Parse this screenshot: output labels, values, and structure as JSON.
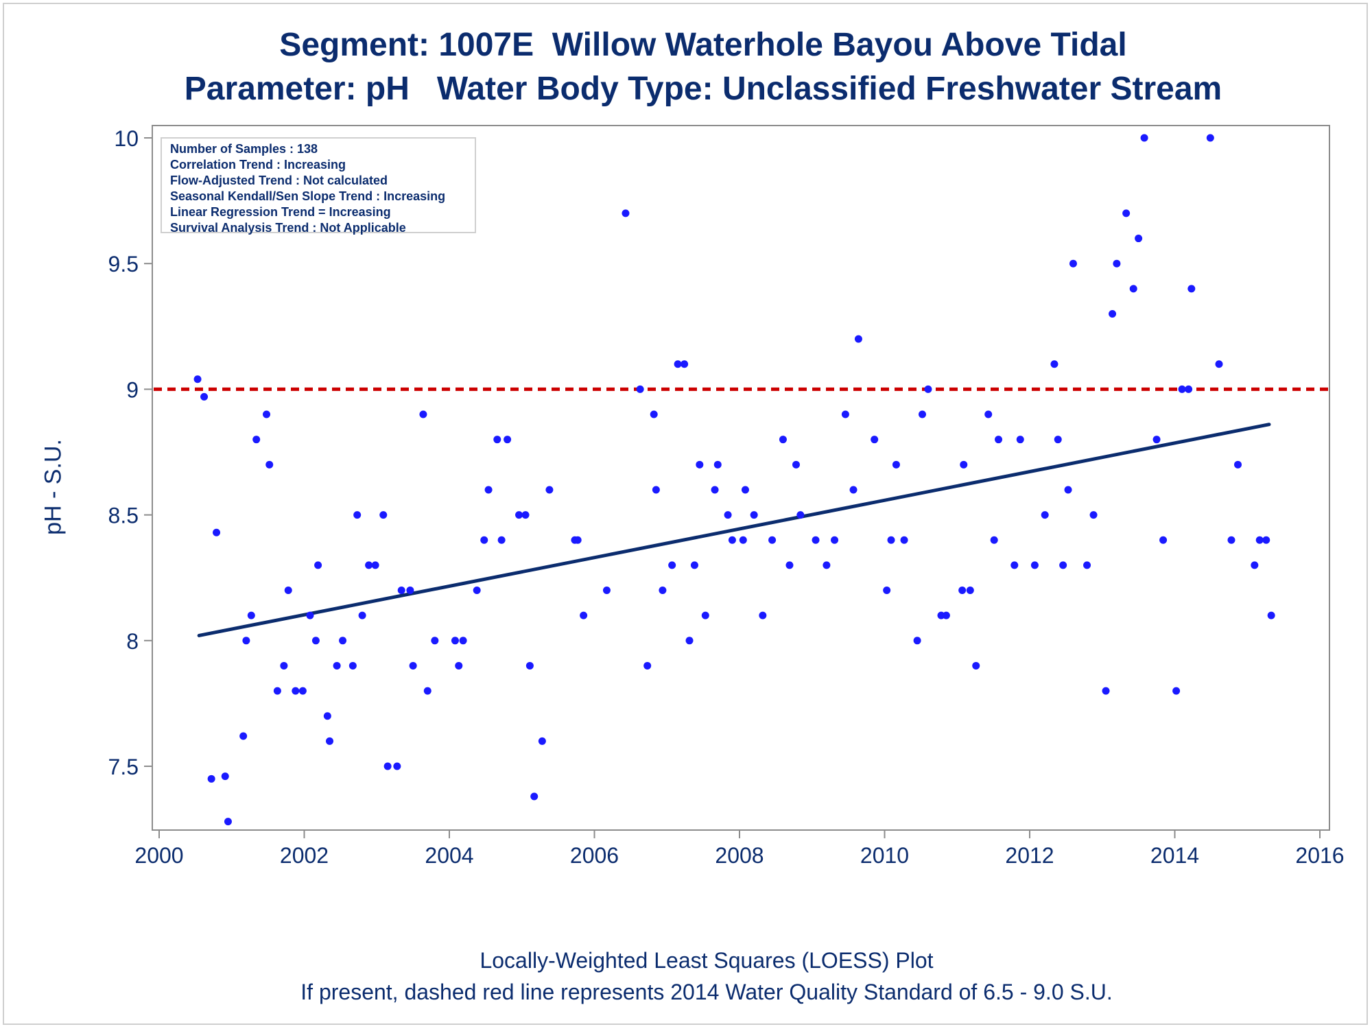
{
  "title": {
    "line1": "Segment: 1007E  Willow Waterhole Bayou Above Tidal",
    "line2": "Parameter: pH   Water Body Type: Unclassified Freshwater Stream"
  },
  "stats_box": {
    "lines": [
      "Number of Samples : 138",
      "Correlation Trend : Increasing",
      "Flow-Adjusted Trend : Not calculated",
      "Seasonal Kendall/Sen Slope Trend : Increasing",
      "Linear Regression Trend = Increasing",
      "Survival Analysis Trend : Not Applicable"
    ]
  },
  "footer": {
    "line1": "Locally-Weighted Least Squares (LOESS) Plot",
    "line2": "If present, dashed red line represents 2014 Water Quality Standard of 6.5 - 9.0 S.U."
  },
  "colors": {
    "points": "#1a1aff",
    "trend": "#0b2c6e",
    "standard_line": "#cc0000",
    "text": "#0b2c6e",
    "axis": "#8c8c8c"
  },
  "chart_data": {
    "type": "scatter",
    "ylabel": "pH - S.U.",
    "xlabel": "",
    "xlim": [
      2000,
      2016
    ],
    "ylim": [
      7.28,
      10.05
    ],
    "x_ticks": [
      2000,
      2002,
      2004,
      2006,
      2008,
      2010,
      2012,
      2014,
      2016
    ],
    "x_tick_labels": [
      "2000",
      "2002",
      "2004",
      "2006",
      "2008",
      "2010",
      "2012",
      "2014",
      "2016"
    ],
    "y_ticks": [
      7.5,
      8,
      8.5,
      9,
      9.5,
      10
    ],
    "y_tick_labels": [
      "7.5",
      "8",
      "8.5",
      "9",
      "9.5",
      "10"
    ],
    "grid": false,
    "reference_line": {
      "y": 9.0,
      "style": "dashed"
    },
    "trend_line": {
      "x": [
        2000.55,
        2015.3
      ],
      "y": [
        8.02,
        8.86
      ]
    },
    "points": [
      [
        2000.53,
        9.04
      ],
      [
        2000.62,
        8.97
      ],
      [
        2000.72,
        7.45
      ],
      [
        2000.79,
        8.43
      ],
      [
        2000.91,
        7.46
      ],
      [
        2000.95,
        7.28
      ],
      [
        2001.16,
        7.62
      ],
      [
        2001.2,
        8.0
      ],
      [
        2001.27,
        8.1
      ],
      [
        2001.34,
        8.8
      ],
      [
        2001.48,
        8.9
      ],
      [
        2001.52,
        8.7
      ],
      [
        2001.63,
        7.8
      ],
      [
        2001.72,
        7.9
      ],
      [
        2001.78,
        8.2
      ],
      [
        2001.88,
        7.8
      ],
      [
        2001.98,
        7.8
      ],
      [
        2002.08,
        8.1
      ],
      [
        2002.16,
        8.0
      ],
      [
        2002.19,
        8.3
      ],
      [
        2002.32,
        7.7
      ],
      [
        2002.35,
        7.6
      ],
      [
        2002.45,
        7.9
      ],
      [
        2002.53,
        8.0
      ],
      [
        2002.67,
        7.9
      ],
      [
        2002.73,
        8.5
      ],
      [
        2002.8,
        8.1
      ],
      [
        2002.89,
        8.3
      ],
      [
        2002.98,
        8.3
      ],
      [
        2003.09,
        8.5
      ],
      [
        2003.15,
        7.5
      ],
      [
        2003.28,
        7.5
      ],
      [
        2003.34,
        8.2
      ],
      [
        2003.46,
        8.2
      ],
      [
        2003.5,
        7.9
      ],
      [
        2003.64,
        8.9
      ],
      [
        2003.7,
        7.8
      ],
      [
        2003.8,
        8.0
      ],
      [
        2004.08,
        8.0
      ],
      [
        2004.13,
        7.9
      ],
      [
        2004.19,
        8.0
      ],
      [
        2004.38,
        8.2
      ],
      [
        2004.48,
        8.4
      ],
      [
        2004.54,
        8.6
      ],
      [
        2004.66,
        8.8
      ],
      [
        2004.72,
        8.4
      ],
      [
        2004.8,
        8.8
      ],
      [
        2004.96,
        8.5
      ],
      [
        2005.05,
        8.5
      ],
      [
        2005.11,
        7.9
      ],
      [
        2005.17,
        7.38
      ],
      [
        2005.28,
        7.6
      ],
      [
        2005.38,
        8.6
      ],
      [
        2005.73,
        8.4
      ],
      [
        2005.77,
        8.4
      ],
      [
        2005.85,
        8.1
      ],
      [
        2006.17,
        8.2
      ],
      [
        2006.43,
        9.7
      ],
      [
        2006.63,
        9.0
      ],
      [
        2006.73,
        7.9
      ],
      [
        2006.82,
        8.9
      ],
      [
        2006.85,
        8.6
      ],
      [
        2006.94,
        8.2
      ],
      [
        2007.07,
        8.3
      ],
      [
        2007.15,
        9.1
      ],
      [
        2007.24,
        9.1
      ],
      [
        2007.31,
        8.0
      ],
      [
        2007.38,
        8.3
      ],
      [
        2007.45,
        8.7
      ],
      [
        2007.53,
        8.1
      ],
      [
        2007.66,
        8.6
      ],
      [
        2007.7,
        8.7
      ],
      [
        2007.84,
        8.5
      ],
      [
        2007.9,
        8.4
      ],
      [
        2008.05,
        8.4
      ],
      [
        2008.08,
        8.6
      ],
      [
        2008.2,
        8.5
      ],
      [
        2008.32,
        8.1
      ],
      [
        2008.45,
        8.4
      ],
      [
        2008.6,
        8.8
      ],
      [
        2008.69,
        8.3
      ],
      [
        2008.78,
        8.7
      ],
      [
        2008.84,
        8.5
      ],
      [
        2009.05,
        8.4
      ],
      [
        2009.2,
        8.3
      ],
      [
        2009.31,
        8.4
      ],
      [
        2009.46,
        8.9
      ],
      [
        2009.57,
        8.6
      ],
      [
        2009.64,
        9.2
      ],
      [
        2009.86,
        8.8
      ],
      [
        2010.03,
        8.2
      ],
      [
        2010.09,
        8.4
      ],
      [
        2010.16,
        8.7
      ],
      [
        2010.27,
        8.4
      ],
      [
        2010.45,
        8.0
      ],
      [
        2010.52,
        8.9
      ],
      [
        2010.6,
        9.0
      ],
      [
        2010.78,
        8.1
      ],
      [
        2010.85,
        8.1
      ],
      [
        2011.07,
        8.2
      ],
      [
        2011.09,
        8.7
      ],
      [
        2011.18,
        8.2
      ],
      [
        2011.26,
        7.9
      ],
      [
        2011.43,
        8.9
      ],
      [
        2011.51,
        8.4
      ],
      [
        2011.57,
        8.8
      ],
      [
        2011.79,
        8.3
      ],
      [
        2011.87,
        8.8
      ],
      [
        2012.07,
        8.3
      ],
      [
        2012.21,
        8.5
      ],
      [
        2012.34,
        9.1
      ],
      [
        2012.39,
        8.8
      ],
      [
        2012.46,
        8.3
      ],
      [
        2012.53,
        8.6
      ],
      [
        2012.6,
        9.5
      ],
      [
        2012.79,
        8.3
      ],
      [
        2012.88,
        8.5
      ],
      [
        2013.05,
        7.8
      ],
      [
        2013.14,
        9.3
      ],
      [
        2013.2,
        9.5
      ],
      [
        2013.33,
        9.7
      ],
      [
        2013.43,
        9.4
      ],
      [
        2013.5,
        9.6
      ],
      [
        2013.58,
        10.0
      ],
      [
        2013.75,
        8.8
      ],
      [
        2013.84,
        8.4
      ],
      [
        2014.02,
        7.8
      ],
      [
        2014.1,
        9.0
      ],
      [
        2014.19,
        9.0
      ],
      [
        2014.23,
        9.4
      ],
      [
        2014.49,
        10.0
      ],
      [
        2014.61,
        9.1
      ],
      [
        2014.78,
        8.4
      ],
      [
        2014.87,
        8.7
      ],
      [
        2015.1,
        8.3
      ],
      [
        2015.17,
        8.4
      ],
      [
        2015.26,
        8.4
      ],
      [
        2015.33,
        8.1
      ]
    ]
  }
}
